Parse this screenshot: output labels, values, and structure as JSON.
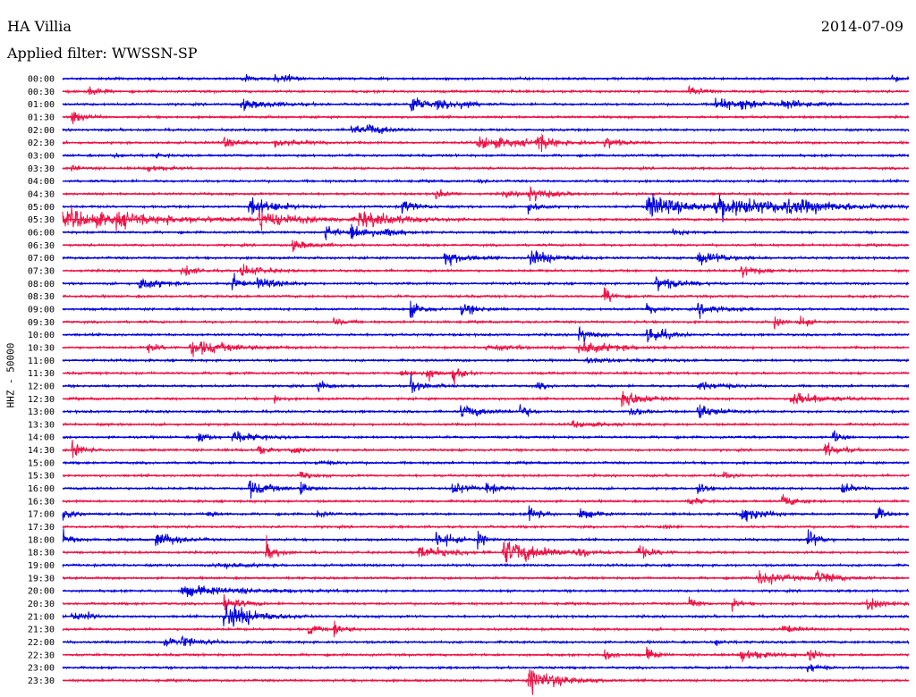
{
  "header": {
    "station": "HA Villia",
    "date": "2014-07-09",
    "filter": "Applied filter: WWSSN-SP",
    "channel_label": "HHZ - 50000"
  },
  "colors": {
    "even_trace": "#0000dd",
    "odd_trace": "#ee1144"
  },
  "chart_data": {
    "type": "line",
    "title": "HA Villia",
    "ylabel": "HHZ - 50000",
    "grid": false,
    "rows": [
      {
        "label": "00:00",
        "events": [
          [
            0.21,
            0.35,
            0.1
          ],
          [
            0.25,
            0.3,
            0.06
          ],
          [
            0.26,
            0.5,
            0.08
          ],
          [
            0.54,
            0.15,
            0.05
          ],
          [
            0.98,
            0.4,
            0.08
          ]
        ]
      },
      {
        "label": "00:30",
        "events": [
          [
            0.03,
            0.45,
            0.1
          ],
          [
            0.53,
            0.1,
            0.04
          ],
          [
            0.74,
            0.45,
            0.12
          ]
        ]
      },
      {
        "label": "01:00",
        "events": [
          [
            0.21,
            0.35,
            0.3
          ],
          [
            0.41,
            0.9,
            0.12
          ],
          [
            0.44,
            0.4,
            0.15
          ],
          [
            0.47,
            0.5,
            0.1
          ],
          [
            0.77,
            0.9,
            0.12
          ],
          [
            0.8,
            0.45,
            0.2
          ],
          [
            0.85,
            0.4,
            0.2
          ]
        ]
      },
      {
        "label": "01:30",
        "events": [
          [
            0.01,
            0.5,
            0.12
          ]
        ]
      },
      {
        "label": "02:00",
        "events": [
          [
            0.34,
            0.5,
            0.1
          ],
          [
            0.36,
            0.45,
            0.18
          ]
        ]
      },
      {
        "label": "02:30",
        "events": [
          [
            0.19,
            0.4,
            0.15
          ],
          [
            0.25,
            0.3,
            0.25
          ],
          [
            0.49,
            0.4,
            0.6
          ],
          [
            0.56,
            0.7,
            0.15
          ],
          [
            0.64,
            0.45,
            0.15
          ]
        ]
      },
      {
        "label": "03:00",
        "events": [
          [
            0.06,
            0.15,
            0.1
          ],
          [
            0.11,
            0.12,
            0.1
          ]
        ]
      },
      {
        "label": "03:30",
        "events": [
          [
            0.01,
            0.2,
            0.1
          ],
          [
            0.1,
            0.25,
            0.15
          ]
        ]
      },
      {
        "label": "04:00",
        "events": [
          [
            0.49,
            0.12,
            0.08
          ]
        ]
      },
      {
        "label": "04:30",
        "events": [
          [
            0.44,
            0.35,
            0.1
          ],
          [
            0.52,
            0.25,
            0.12
          ],
          [
            0.55,
            0.55,
            0.2
          ]
        ]
      },
      {
        "label": "05:00",
        "events": [
          [
            0.22,
            0.75,
            0.25
          ],
          [
            0.4,
            0.5,
            0.15
          ],
          [
            0.55,
            0.5,
            0.1
          ],
          [
            0.69,
            0.85,
            0.4
          ],
          [
            0.77,
            0.9,
            0.6
          ],
          [
            0.85,
            0.6,
            0.6
          ]
        ]
      },
      {
        "label": "05:30",
        "events": [
          [
            0.0,
            0.6,
            1.0
          ],
          [
            0.06,
            0.65,
            0.35
          ],
          [
            0.23,
            0.7,
            0.4
          ],
          [
            0.35,
            0.6,
            0.4
          ]
        ]
      },
      {
        "label": "06:00",
        "events": [
          [
            0.31,
            0.6,
            0.1
          ],
          [
            0.34,
            0.7,
            0.18
          ],
          [
            0.38,
            0.5,
            0.1
          ],
          [
            0.72,
            0.2,
            0.15
          ]
        ]
      },
      {
        "label": "06:30",
        "events": [
          [
            0.27,
            0.35,
            0.2
          ]
        ]
      },
      {
        "label": "07:00",
        "events": [
          [
            0.45,
            0.55,
            0.2
          ],
          [
            0.55,
            0.6,
            0.25
          ],
          [
            0.75,
            0.5,
            0.25
          ]
        ]
      },
      {
        "label": "07:30",
        "events": [
          [
            0.14,
            0.6,
            0.1
          ],
          [
            0.21,
            0.45,
            0.2
          ],
          [
            0.8,
            0.45,
            0.2
          ]
        ]
      },
      {
        "label": "08:00",
        "events": [
          [
            0.09,
            0.5,
            0.2
          ],
          [
            0.2,
            0.65,
            0.08
          ],
          [
            0.23,
            0.45,
            0.2
          ],
          [
            0.7,
            0.5,
            0.25
          ]
        ]
      },
      {
        "label": "08:30",
        "events": [
          [
            0.64,
            0.75,
            0.08
          ]
        ]
      },
      {
        "label": "09:00",
        "events": [
          [
            0.41,
            0.65,
            0.12
          ],
          [
            0.47,
            0.45,
            0.15
          ],
          [
            0.69,
            0.6,
            0.08
          ],
          [
            0.75,
            0.45,
            0.2
          ]
        ]
      },
      {
        "label": "09:30",
        "events": [
          [
            0.32,
            0.3,
            0.1
          ],
          [
            0.84,
            0.6,
            0.08
          ],
          [
            0.87,
            0.55,
            0.08
          ]
        ]
      },
      {
        "label": "10:00",
        "events": [
          [
            0.61,
            0.7,
            0.1
          ],
          [
            0.69,
            0.8,
            0.15
          ]
        ]
      },
      {
        "label": "10:30",
        "events": [
          [
            0.1,
            0.4,
            0.1
          ],
          [
            0.15,
            0.55,
            0.4
          ],
          [
            0.5,
            0.15,
            0.4
          ],
          [
            0.61,
            0.55,
            0.3
          ]
        ]
      },
      {
        "label": "11:00",
        "events": [
          [
            0.62,
            0.15,
            0.4
          ]
        ]
      },
      {
        "label": "11:30",
        "events": [
          [
            0.4,
            0.3,
            0.15
          ],
          [
            0.43,
            0.55,
            0.08
          ],
          [
            0.46,
            0.8,
            0.08
          ]
        ]
      },
      {
        "label": "12:00",
        "events": [
          [
            0.3,
            0.6,
            0.08
          ],
          [
            0.41,
            0.55,
            0.15
          ],
          [
            0.56,
            0.3,
            0.08
          ],
          [
            0.75,
            0.3,
            0.25
          ]
        ]
      },
      {
        "label": "12:30",
        "events": [
          [
            0.25,
            0.3,
            0.06
          ],
          [
            0.66,
            0.8,
            0.2
          ],
          [
            0.86,
            0.55,
            0.3
          ]
        ]
      },
      {
        "label": "13:00",
        "events": [
          [
            0.47,
            0.55,
            0.2
          ],
          [
            0.54,
            0.7,
            0.08
          ],
          [
            0.67,
            0.5,
            0.1
          ],
          [
            0.75,
            0.55,
            0.2
          ]
        ]
      },
      {
        "label": "13:30",
        "events": [
          [
            0.6,
            0.2,
            0.3
          ]
        ]
      },
      {
        "label": "14:00",
        "events": [
          [
            0.16,
            0.55,
            0.08
          ],
          [
            0.2,
            0.45,
            0.2
          ],
          [
            0.91,
            0.6,
            0.08
          ]
        ]
      },
      {
        "label": "14:30",
        "events": [
          [
            0.01,
            0.6,
            0.1
          ],
          [
            0.23,
            0.45,
            0.08
          ],
          [
            0.27,
            0.45,
            0.08
          ],
          [
            0.9,
            0.55,
            0.15
          ]
        ]
      },
      {
        "label": "15:00",
        "events": [
          [
            0.3,
            0.12,
            0.2
          ]
        ]
      },
      {
        "label": "15:30",
        "events": [
          [
            0.28,
            0.3,
            0.1
          ],
          [
            0.78,
            0.25,
            0.1
          ]
        ]
      },
      {
        "label": "16:00",
        "events": [
          [
            0.22,
            0.6,
            0.2
          ],
          [
            0.28,
            0.55,
            0.1
          ],
          [
            0.46,
            0.55,
            0.12
          ],
          [
            0.5,
            0.5,
            0.1
          ],
          [
            0.75,
            0.6,
            0.08
          ],
          [
            0.92,
            0.5,
            0.1
          ]
        ]
      },
      {
        "label": "16:30",
        "events": [
          [
            0.74,
            0.35,
            0.1
          ],
          [
            0.85,
            0.45,
            0.15
          ]
        ]
      },
      {
        "label": "17:00",
        "events": [
          [
            0.0,
            0.5,
            0.1
          ],
          [
            0.17,
            0.3,
            0.08
          ],
          [
            0.3,
            0.3,
            0.08
          ],
          [
            0.55,
            0.6,
            0.1
          ],
          [
            0.61,
            0.45,
            0.12
          ],
          [
            0.8,
            0.6,
            0.2
          ],
          [
            0.96,
            0.7,
            0.08
          ]
        ]
      },
      {
        "label": "17:30",
        "events": [
          [
            0.71,
            0.35,
            0.06
          ]
        ]
      },
      {
        "label": "18:00",
        "events": [
          [
            0.0,
            0.55,
            0.1
          ],
          [
            0.11,
            0.6,
            0.2
          ],
          [
            0.44,
            0.7,
            0.15
          ],
          [
            0.49,
            0.6,
            0.08
          ],
          [
            0.88,
            0.8,
            0.1
          ]
        ]
      },
      {
        "label": "18:30",
        "events": [
          [
            0.24,
            0.8,
            0.1
          ],
          [
            0.42,
            0.5,
            0.25
          ],
          [
            0.52,
            0.9,
            0.4
          ],
          [
            0.61,
            0.65,
            0.08
          ],
          [
            0.68,
            0.5,
            0.15
          ]
        ]
      },
      {
        "label": "19:00",
        "events": [
          [
            0.18,
            0.2,
            0.3
          ]
        ]
      },
      {
        "label": "19:30",
        "events": [
          [
            0.82,
            0.55,
            0.25
          ],
          [
            0.89,
            0.55,
            0.2
          ]
        ]
      },
      {
        "label": "20:00",
        "events": [
          [
            0.14,
            0.35,
            0.6
          ]
        ]
      },
      {
        "label": "20:30",
        "events": [
          [
            0.19,
            0.6,
            0.15
          ],
          [
            0.74,
            0.5,
            0.08
          ],
          [
            0.79,
            0.45,
            0.08
          ],
          [
            0.95,
            0.6,
            0.15
          ]
        ]
      },
      {
        "label": "21:00",
        "events": [
          [
            0.01,
            0.4,
            0.08
          ],
          [
            0.03,
            0.45,
            0.06
          ],
          [
            0.19,
            1.0,
            0.3
          ]
        ]
      },
      {
        "label": "21:30",
        "events": [
          [
            0.29,
            0.55,
            0.08
          ],
          [
            0.32,
            0.6,
            0.1
          ],
          [
            0.85,
            0.35,
            0.12
          ]
        ]
      },
      {
        "label": "22:00",
        "events": [
          [
            0.12,
            0.55,
            0.1
          ],
          [
            0.14,
            0.5,
            0.15
          ],
          [
            0.77,
            0.25,
            0.08
          ]
        ]
      },
      {
        "label": "22:30",
        "events": [
          [
            0.64,
            0.6,
            0.08
          ],
          [
            0.69,
            0.55,
            0.08
          ],
          [
            0.8,
            0.55,
            0.2
          ],
          [
            0.88,
            0.7,
            0.08
          ]
        ]
      },
      {
        "label": "23:00",
        "events": [
          [
            0.88,
            0.4,
            0.1
          ]
        ]
      },
      {
        "label": "23:30",
        "events": [
          [
            0.55,
            0.9,
            0.3
          ]
        ]
      }
    ]
  }
}
